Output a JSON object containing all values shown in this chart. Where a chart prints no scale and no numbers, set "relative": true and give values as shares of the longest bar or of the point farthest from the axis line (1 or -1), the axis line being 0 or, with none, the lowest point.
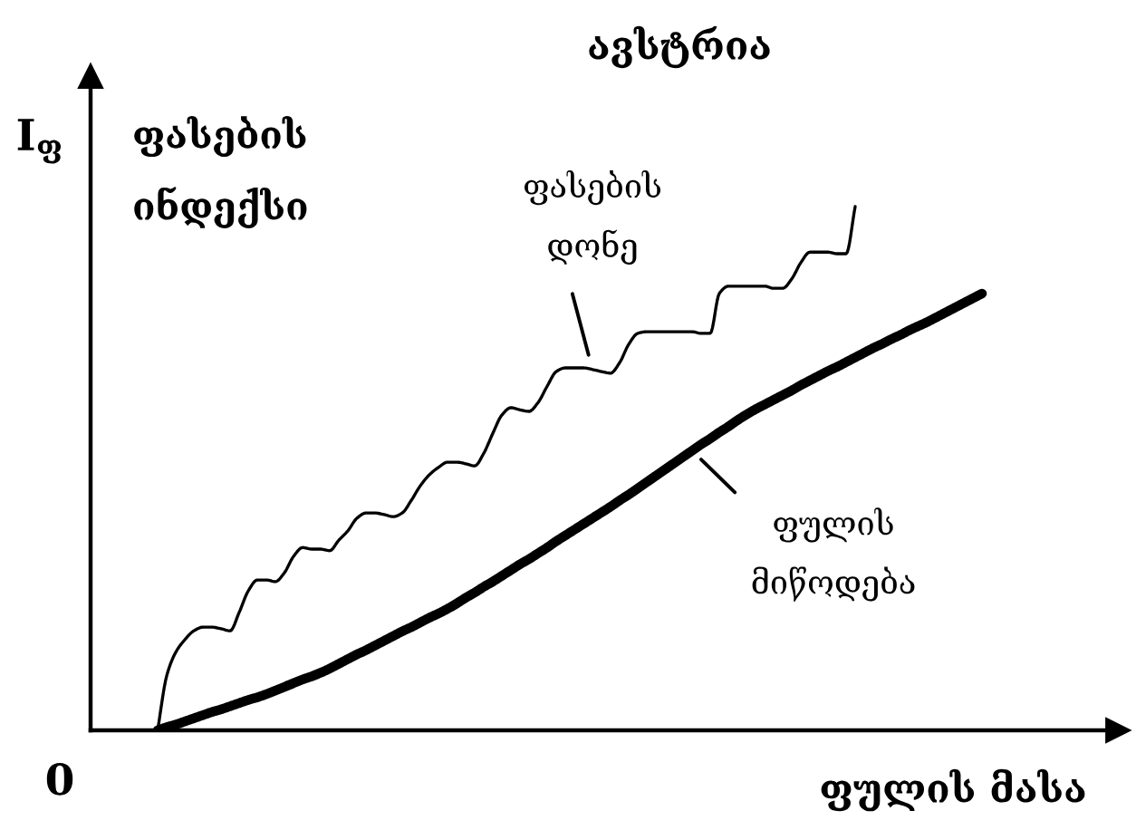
{
  "chart_data": {
    "type": "line",
    "title": "ავსტრია",
    "xlabel": "ფულის მასა",
    "ylabel": "I$_{ფ}$",
    "relative": true,
    "annotations": [
      "ფასების\nინდექსი",
      "0"
    ],
    "categories": [
      null,
      null,
      null,
      null,
      null,
      null,
      null,
      null,
      null,
      null,
      null,
      null,
      null,
      null,
      null,
      null,
      null,
      null,
      null,
      null,
      null,
      null,
      null,
      null,
      null,
      null,
      null,
      null,
      null,
      null,
      null,
      null,
      null,
      null,
      null,
      null,
      null,
      null,
      null,
      null,
      null,
      null,
      null,
      null,
      null,
      null,
      null,
      null,
      null,
      null,
      null,
      null,
      null,
      null,
      null,
      null,
      null,
      null,
      null,
      null,
      null,
      null,
      null,
      null,
      null,
      null,
      null,
      null,
      null,
      null,
      null,
      null,
      null,
      null,
      null,
      null,
      null,
      null,
      null,
      null,
      null,
      null,
      null,
      null,
      null,
      null,
      null,
      null,
      null,
      null,
      null,
      null
    ],
    "series": [
      {
        "name": "ფასების\nდონე",
        "color": "#000000",
        "values": [
          0,
          0.104,
          0.149,
          0.173,
          0.19,
          0.197,
          0.197,
          0.194,
          0.19,
          0.225,
          0.266,
          0.287,
          0.287,
          0.284,
          0.301,
          0.332,
          0.349,
          0.346,
          0.346,
          0.343,
          0.363,
          0.381,
          0.405,
          0.415,
          0.415,
          0.412,
          0.408,
          0.415,
          0.439,
          0.467,
          0.488,
          0.502,
          0.512,
          0.512,
          0.509,
          0.505,
          0.529,
          0.567,
          0.602,
          0.616,
          0.612,
          0.609,
          0.626,
          0.657,
          0.685,
          0.692,
          0.692,
          0.692,
          0.689,
          0.685,
          0.682,
          0.702,
          0.737,
          0.758,
          0.761,
          0.761,
          0.761,
          0.761,
          0.761,
          0.761,
          0.758,
          0.758,
          0.834,
          0.848,
          0.848,
          0.848,
          0.848,
          0.848,
          0.844,
          0.844,
          0.862,
          0.893,
          0.913,
          0.913,
          0.913,
          0.91,
          0.91,
          1.0,
          null,
          null,
          null,
          null,
          null,
          null,
          null,
          null,
          null,
          null,
          null,
          null,
          null,
          null
        ]
      },
      {
        "name": "ფულის\nმიწოდება",
        "color": "#000000",
        "values": [
          0,
          0.006,
          0.011,
          0.017,
          0.023,
          0.029,
          0.035,
          0.04,
          0.046,
          0.052,
          0.058,
          0.063,
          0.069,
          0.076,
          0.083,
          0.09,
          0.097,
          0.103,
          0.11,
          0.118,
          0.127,
          0.136,
          0.145,
          0.153,
          0.162,
          0.171,
          0.18,
          0.189,
          0.197,
          0.206,
          0.215,
          0.223,
          0.232,
          0.242,
          0.253,
          0.263,
          0.274,
          0.284,
          0.295,
          0.306,
          0.317,
          0.327,
          0.338,
          0.349,
          0.361,
          0.372,
          0.383,
          0.394,
          0.405,
          0.416,
          0.427,
          0.439,
          0.45,
          0.462,
          0.474,
          0.486,
          0.498,
          0.51,
          0.522,
          0.534,
          0.546,
          0.557,
          0.569,
          0.58,
          0.592,
          0.603,
          0.613,
          0.622,
          0.631,
          0.64,
          0.649,
          0.659,
          0.668,
          0.677,
          0.686,
          0.694,
          0.703,
          0.712,
          0.721,
          0.73,
          0.738,
          0.747,
          0.755,
          0.764,
          0.772,
          0.78,
          0.789,
          0.798,
          0.807,
          0.816,
          0.825,
          0.834
        ]
      }
    ]
  }
}
